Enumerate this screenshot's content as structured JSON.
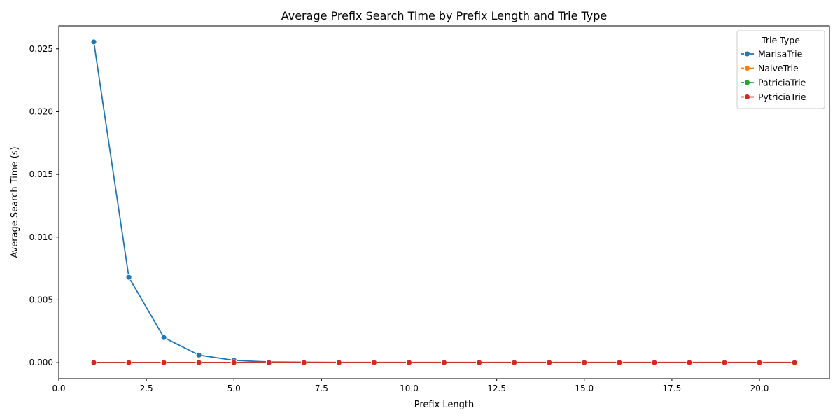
{
  "chart_data": {
    "type": "line",
    "title": "Average Prefix Search Time by Prefix Length and Trie Type",
    "xlabel": "Prefix Length",
    "ylabel": "Average Search Time (s)",
    "xlim": [
      0,
      21.997
    ],
    "ylim": [
      -0.0012775,
      0.0268275
    ],
    "x_ticks": [
      {
        "value": 0,
        "label": "0.0"
      },
      {
        "value": 2.5,
        "label": "2.5"
      },
      {
        "value": 5,
        "label": "5.0"
      },
      {
        "value": 7.5,
        "label": "7.5"
      },
      {
        "value": 10,
        "label": "10.0"
      },
      {
        "value": 12.5,
        "label": "12.5"
      },
      {
        "value": 15,
        "label": "15.0"
      },
      {
        "value": 17.5,
        "label": "17.5"
      },
      {
        "value": 20,
        "label": "20.0"
      }
    ],
    "y_ticks": [
      {
        "value": 0,
        "label": "0.000"
      },
      {
        "value": 0.005,
        "label": "0.005"
      },
      {
        "value": 0.01,
        "label": "0.010"
      },
      {
        "value": 0.015,
        "label": "0.015"
      },
      {
        "value": 0.02,
        "label": "0.020"
      },
      {
        "value": 0.025,
        "label": "0.025"
      }
    ],
    "grid": false,
    "legend": {
      "title": "Trie Type",
      "position": "top-right"
    },
    "x": [
      1,
      2,
      3,
      4,
      5,
      6,
      7,
      8,
      9,
      10,
      11,
      12,
      13,
      14,
      15,
      16,
      17,
      18,
      19,
      20,
      21
    ],
    "series": [
      {
        "name": "MarisaTrie",
        "color": "#1f77b4",
        "values": [
          0.02555,
          0.0068,
          0.002,
          0.0006,
          0.00018,
          5e-05,
          3e-05,
          2e-05,
          2e-05,
          2e-05,
          2e-05,
          2e-05,
          2e-05,
          2e-05,
          2e-05,
          2e-05,
          2e-05,
          2e-05,
          2e-05,
          2e-05,
          2e-05
        ]
      },
      {
        "name": "NaiveTrie",
        "color": "#ff7f0e",
        "values": [
          5e-06,
          4e-06,
          4e-06,
          4e-06,
          4e-06,
          4e-06,
          4e-06,
          4e-06,
          4e-06,
          4e-06,
          4e-06,
          4e-06,
          4e-06,
          4e-06,
          4e-06,
          4e-06,
          4e-06,
          4e-06,
          4e-06,
          4e-06,
          4e-06
        ]
      },
      {
        "name": "PatriciaTrie",
        "color": "#2ca02c",
        "values": [
          3e-06,
          3e-06,
          3e-06,
          3e-06,
          3e-06,
          3e-06,
          3e-06,
          3e-06,
          3e-06,
          3e-06,
          3e-06,
          3e-06,
          3e-06,
          3e-06,
          3e-06,
          3e-06,
          3e-06,
          3e-06,
          3e-06,
          3e-06,
          3e-06
        ]
      },
      {
        "name": "PytriciaTrie",
        "color": "#d62728",
        "values": [
          2e-06,
          2e-06,
          2e-06,
          2e-06,
          2e-06,
          2e-06,
          2e-06,
          2e-06,
          2e-06,
          2e-06,
          2e-06,
          2e-06,
          2e-06,
          2e-06,
          2e-06,
          2e-06,
          2e-06,
          2e-06,
          2e-06,
          2e-06,
          2e-06
        ]
      }
    ]
  }
}
